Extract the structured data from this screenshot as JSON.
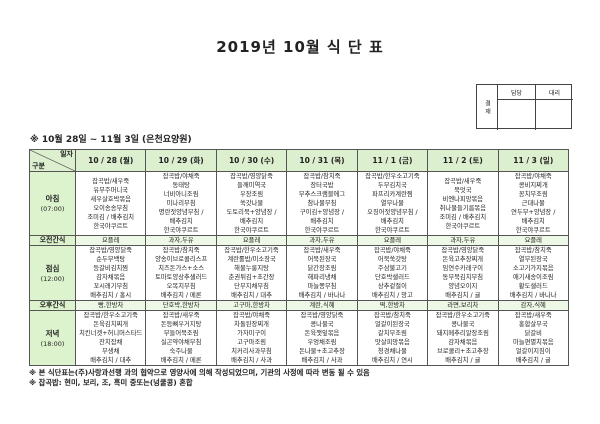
{
  "title": "2019년 10월 식 단 표",
  "approval": {
    "label": "결재",
    "col1": "담당",
    "col2": "대리"
  },
  "subtitle": "※ 10월 28일 ~ 11월 3일 (은천요양원)",
  "corner": {
    "top": "일자",
    "bottom": "구분"
  },
  "meals": {
    "breakfast": {
      "label": "아침",
      "time": "(07:00)"
    },
    "am_snack": {
      "label": "오전간식"
    },
    "lunch": {
      "label": "점심",
      "time": "(12:00)"
    },
    "pm_snack": {
      "label": "오후간식"
    },
    "dinner": {
      "label": "저녁",
      "time": "(18:00)"
    }
  },
  "days": [
    {
      "date": "10 / 28 (월)",
      "breakfast": [
        "잡곡밥/새우죽",
        "유부주머니국",
        "새우살호박볶음",
        "오이송송무침",
        "조미김 / 배추김치",
        "한국야쿠르트"
      ],
      "am_snack": "요플레",
      "lunch": [
        "잡곡밥/영양닭죽",
        "순두부백탕",
        "등갈비김치찜",
        "감자채볶음",
        "꼬시래기무침",
        "배추김치 / 홍시"
      ],
      "pm_snack": "빵,한방차",
      "dinner": [
        "잡곡밥/한우소고기죽",
        "돈육김치찌개",
        "치킨너겟+허니머스타드",
        "잔치잡채",
        "무생채",
        "배추김치 / 대추"
      ]
    },
    {
      "date": "10 / 29 (화)",
      "breakfast": [
        "잡곡밥/야채죽",
        "동태탕",
        "너비아니조림",
        "미나리무침",
        "명란젓양념무침 /",
        "배추김치",
        "한국야쿠르트"
      ],
      "am_snack": "과자,두유",
      "lunch": [
        "잡곡밥/참치죽",
        "양송이브로콜리스프",
        "치즈돈가스+소스",
        "토마토양상추샐러드",
        "오복지무침",
        "배추김치 / 메론"
      ],
      "pm_snack": "단호박,한방차",
      "dinner": [
        "잡곡밥/새우죽",
        "돈등뼈우거지탕",
        "부들어묵조림",
        "실곤약야채무침",
        "숙주나물",
        "배추김치 / 메론"
      ]
    },
    {
      "date": "10 / 30 (수)",
      "breakfast": [
        "잡곡밥/영양닭죽",
        "들깨미역국",
        "우장조림",
        "쑥갓나물",
        "도토리묵+양념장 /",
        "배추김치",
        "한국야쿠르트"
      ],
      "am_snack": "요플레",
      "lunch": [
        "잡곡밥/한우소고기죽",
        "계란롤밥/미소장국",
        "해물누룽지탕",
        "춘권튀김+초간장",
        "단무지채무침",
        "배추김치 / 대추"
      ],
      "pm_snack": "고구마,한방차",
      "dinner": [
        "잡곡밥/야채죽",
        "차돌된장찌개",
        "가자미구이",
        "고구마조림",
        "치커리사과무침",
        "배추김치 / 사과"
      ]
    },
    {
      "date": "10 / 31 (목)",
      "breakfast": [
        "잡곡밥/참치죽",
        "장터국밥",
        "부추스크램블에그",
        "참나물무침",
        "구이김+양념장 /",
        "배추김치",
        "한국야쿠르트"
      ],
      "am_snack": "과자,두유",
      "lunch": [
        "잡곡밥/새우죽",
        "어묵된장국",
        "닭간장조림",
        "해파리냉채",
        "마늘쫑무침",
        "배추김치 / 바나나"
      ],
      "pm_snack": "계란,식혜",
      "dinner": [
        "잡곡밥/영양닭죽",
        "콩나물국",
        "돈육깻잎볶음",
        "우엉채조림",
        "돈나물+초고추장",
        "배추김치 / 사과"
      ]
    },
    {
      "date": "11 / 1 (금)",
      "breakfast": [
        "잡곡밥/한우소고기죽",
        "두부김치국",
        "파프리카계란찜",
        "열무나물",
        "오징어젓양념무침 /",
        "배추김치",
        "한국야쿠르트"
      ],
      "am_snack": "요플레",
      "lunch": [
        "잡곡밥/야채죽",
        "어묵쑥갓탕",
        "주삼불고기",
        "단호박샐러드",
        "상추겉절이",
        "배추김치 / 망고"
      ],
      "pm_snack": "떡,한방차",
      "dinner": [
        "잡곡밥/참치죽",
        "얼갈이된장국",
        "갈치무조림",
        "맛살피망볶음",
        "청경채나물",
        "배추김치 / 연시"
      ]
    },
    {
      "date": "11 / 2 (토)",
      "breakfast": [
        "잡곡밥/새우죽",
        "북엇국",
        "비엔나피망볶음",
        "취나물들기름볶음",
        "조미김 / 배추김치",
        "한국야쿠르트"
      ],
      "am_snack": "과자,두유",
      "lunch": [
        "잡곡밥/영양닭죽",
        "돈육고추장찌개",
        "임연수카레구이",
        "동부묵김치무침",
        "양념오이지",
        "배추김치 / 귤"
      ],
      "pm_snack": "라면,보리차",
      "dinner": [
        "잡곡밥/한우소고기죽",
        "콩나물국",
        "돼지메추리알장조림",
        "감자채볶음",
        "브로콜리+초고추장",
        "배추김치 / 귤"
      ]
    },
    {
      "date": "11 / 3 (일)",
      "breakfast": [
        "잡곡밥/야채죽",
        "콩비지찌개",
        "꽁치무조림",
        "근대나물",
        "연두부+양념장 /",
        "배추김치",
        "한국야쿠르트"
      ],
      "am_snack": "요플레",
      "lunch": [
        "잡곡밥/참치죽",
        "열무된장국",
        "소고기가지볶음",
        "애기새송이조림",
        "황도샐러드",
        "배추김치 / 바나나"
      ],
      "pm_snack": "감자,식혜",
      "dinner": [
        "잡곡밥/새우죽",
        "홍합살무국",
        "닭갈비",
        "마늘편멸치볶음",
        "얼갈이지짐이",
        "배추김치 / 귤"
      ]
    }
  ],
  "notes": [
    "※ 본 식단표는(주)사랑과선행 과의 협약으로 영양사에 의해 작성되었으며, 기관의 사정에 따라 변동 될 수 있음",
    "※ 잡곡밥: 현미, 보리, 조, 흑미 중또는(넝쿨콩) 혼합"
  ],
  "colors": {
    "header_bg": "#dcefcf",
    "label_bg": "#dcf3cd",
    "snack_bg": "#eef8e6"
  }
}
